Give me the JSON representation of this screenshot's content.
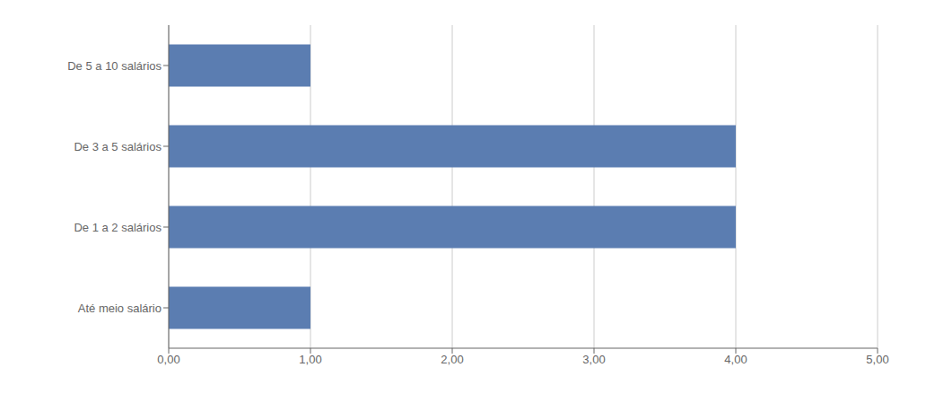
{
  "chart_data": {
    "type": "bar",
    "orientation": "horizontal",
    "categories": [
      "Até meio salário",
      "De 1 a 2 salários",
      "De 3 a 5 salários",
      "De 5 a 10 salários"
    ],
    "values": [
      1,
      4,
      4,
      1
    ],
    "color": "#5b7db1",
    "xlim": [
      0,
      5
    ],
    "xticks": [
      {
        "value": 0,
        "label": "0,00"
      },
      {
        "value": 1,
        "label": "1,00"
      },
      {
        "value": 2,
        "label": "2,00"
      },
      {
        "value": 3,
        "label": "3,00"
      },
      {
        "value": 4,
        "label": "4,00"
      },
      {
        "value": 5,
        "label": "5,00"
      }
    ],
    "grid": true
  }
}
